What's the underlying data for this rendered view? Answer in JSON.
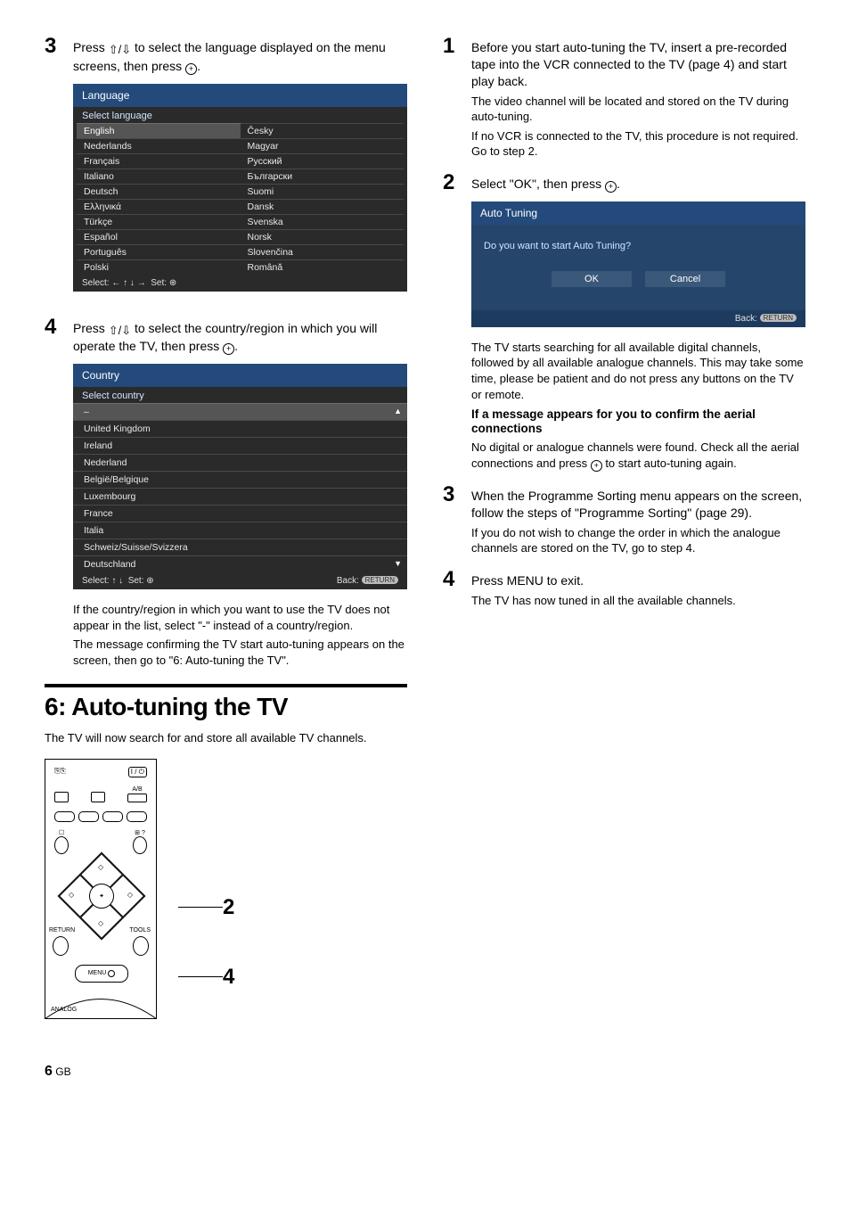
{
  "left": {
    "step3": {
      "text_a": "Press ",
      "text_b": " to select the language displayed on the menu screens, then press ",
      "text_c": "."
    },
    "lang_panel": {
      "header_bg": "#234a7a",
      "body_bg": "#2a2a2a",
      "title": "Language",
      "subtitle": "Select language",
      "items": [
        "English",
        "Česky",
        "Nederlands",
        "Magyar",
        "Français",
        "Русский",
        "Italiano",
        "Български",
        "Deutsch",
        "Suomi",
        "Ελληνικά",
        "Dansk",
        "Türkçe",
        "Svenska",
        "Español",
        "Norsk",
        "Português",
        "Slovenčina",
        "Polski",
        "Română"
      ],
      "selected_index": 0,
      "footer_left": "Select:",
      "footer_set": "Set:"
    },
    "step4": {
      "text_a": "Press ",
      "text_b": " to select the country/region in which you will operate the TV, then press ",
      "text_c": "."
    },
    "country_panel": {
      "header_bg": "#234a7a",
      "body_bg": "#2a2a2a",
      "title": "Country",
      "subtitle": "Select country",
      "items": [
        "–",
        "United Kingdom",
        "Ireland",
        "Nederland",
        "België/Belgique",
        "Luxembourg",
        "France",
        "Italia",
        "Schweiz/Suisse/Svizzera",
        "Deutschland"
      ],
      "selected_index": 0,
      "footer_left": "Select:",
      "footer_set": "Set:",
      "footer_back": "Back:",
      "return_btn": "RETURN"
    },
    "after_country_p1": "If the country/region in which you want to use the TV does not appear in the list, select \"-\" instead of a country/region.",
    "after_country_p2": "The message confirming the TV start auto-tuning appears on the screen, then go to \"6: Auto-tuning the TV\".",
    "heading": "6: Auto-tuning the TV",
    "intro": "The TV will now search for and store all available TV channels.",
    "remote": {
      "return_label": "RETURN",
      "tools_label": "TOOLS",
      "menu_label": "MENU",
      "analog_label": "ANALOG",
      "ab_label": "A/B",
      "callout_2": "2",
      "callout_4": "4"
    }
  },
  "right": {
    "step1": {
      "main": "Before you start auto-tuning the TV, insert a pre-recorded tape into the VCR connected to the TV (page 4) and start play back.",
      "note1": "The video channel will be located and stored on the TV during auto-tuning.",
      "note2": "If no VCR is connected to the TV, this procedure is not required. Go to step 2."
    },
    "step2": {
      "main_a": "Select \"OK\", then press ",
      "main_b": "."
    },
    "auto_panel": {
      "header_bg": "#234a7a",
      "body_bg": "#25456b",
      "title": "Auto Tuning",
      "question": "Do you want to start Auto Tuning?",
      "ok": "OK",
      "cancel": "Cancel",
      "footer_back": "Back:",
      "return_btn": "RETURN"
    },
    "after_auto_p1": "The TV starts searching for all available digital channels, followed by all available analogue channels. This may take some time, please be patient and do not press any buttons on the TV or remote.",
    "after_auto_h": "If a message appears for you to confirm the aerial connections",
    "after_auto_p2a": "No digital or analogue channels were found. Check all the aerial connections and press ",
    "after_auto_p2b": " to start auto-tuning again.",
    "step3": {
      "main": "When the Programme Sorting menu appears on the screen, follow the steps of \"Programme Sorting\" (page 29).",
      "note": "If you do not wish to change the order in which the analogue channels are stored on the TV, go to step 4."
    },
    "step4": {
      "main": "Press MENU to exit.",
      "note": "The TV has now tuned in all the available channels."
    }
  },
  "footer": {
    "page": "6",
    "gb": "GB"
  }
}
